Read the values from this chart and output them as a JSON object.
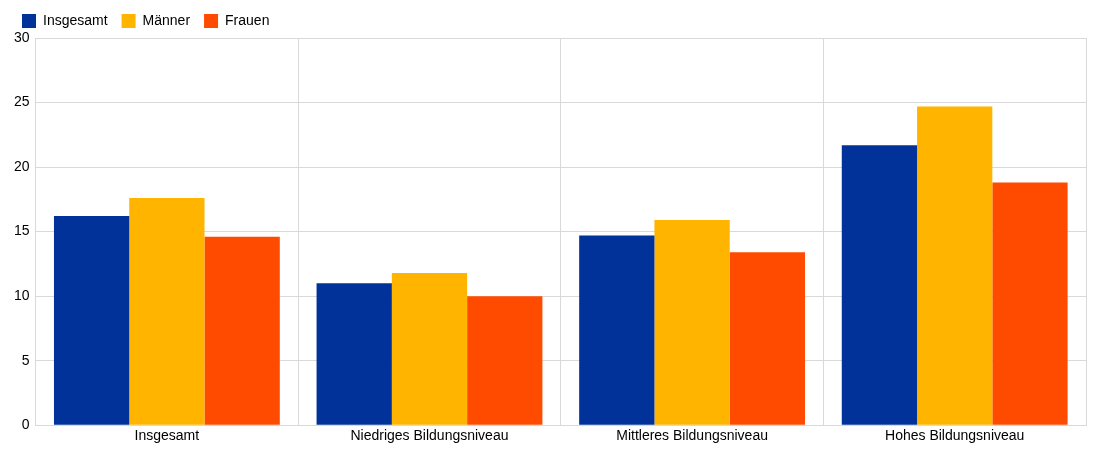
{
  "chart_data": {
    "type": "bar",
    "categories": [
      "Insgesamt",
      "Niedriges Bildungsniveau",
      "Mittleres Bildungsniveau",
      "Hohes Bildungsniveau"
    ],
    "series": [
      {
        "name": "Insgesamt",
        "color": "#003299",
        "values": [
          16.2,
          11.0,
          14.7,
          21.7
        ]
      },
      {
        "name": "Männer",
        "color": "#ffb400",
        "values": [
          17.6,
          11.8,
          15.9,
          24.7
        ]
      },
      {
        "name": "Frauen",
        "color": "#ff4b00",
        "values": [
          14.6,
          10.0,
          13.4,
          18.8
        ]
      }
    ],
    "ylim": [
      0,
      30
    ],
    "yticks": [
      0,
      5,
      10,
      15,
      20,
      25,
      30
    ],
    "grid": true,
    "legend": "top left"
  }
}
